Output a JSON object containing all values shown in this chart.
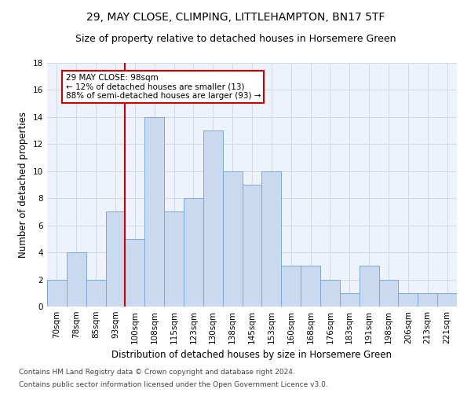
{
  "title1": "29, MAY CLOSE, CLIMPING, LITTLEHAMPTON, BN17 5TF",
  "title2": "Size of property relative to detached houses in Horsemere Green",
  "xlabel": "Distribution of detached houses by size in Horsemere Green",
  "ylabel": "Number of detached properties",
  "categories": [
    "70sqm",
    "78sqm",
    "85sqm",
    "93sqm",
    "100sqm",
    "108sqm",
    "115sqm",
    "123sqm",
    "130sqm",
    "138sqm",
    "145sqm",
    "153sqm",
    "160sqm",
    "168sqm",
    "176sqm",
    "183sqm",
    "191sqm",
    "198sqm",
    "206sqm",
    "213sqm",
    "221sqm"
  ],
  "values": [
    2,
    4,
    2,
    7,
    5,
    14,
    7,
    8,
    13,
    10,
    9,
    10,
    3,
    3,
    2,
    1,
    3,
    2,
    1,
    1,
    1
  ],
  "bar_color": "#c9d9f0",
  "bar_edge_color": "#7aaad4",
  "vline_index": 3,
  "marker_line1": "29 MAY CLOSE: 98sqm",
  "marker_line2": "← 12% of detached houses are smaller (13)",
  "marker_line3": "88% of semi-detached houses are larger (93) →",
  "annotation_box_color": "#ffffff",
  "annotation_box_edge": "#cc0000",
  "vline_color": "#cc0000",
  "grid_color": "#d0d8e8",
  "background_color": "#eef2fa",
  "ylim": [
    0,
    18
  ],
  "yticks": [
    0,
    2,
    4,
    6,
    8,
    10,
    12,
    14,
    16,
    18
  ],
  "footer1": "Contains HM Land Registry data © Crown copyright and database right 2024.",
  "footer2": "Contains public sector information licensed under the Open Government Licence v3.0.",
  "title1_fontsize": 10,
  "title2_fontsize": 9,
  "xlabel_fontsize": 8.5,
  "ylabel_fontsize": 8.5,
  "tick_fontsize": 7.5,
  "annotation_fontsize": 7.5,
  "footer_fontsize": 6.5
}
